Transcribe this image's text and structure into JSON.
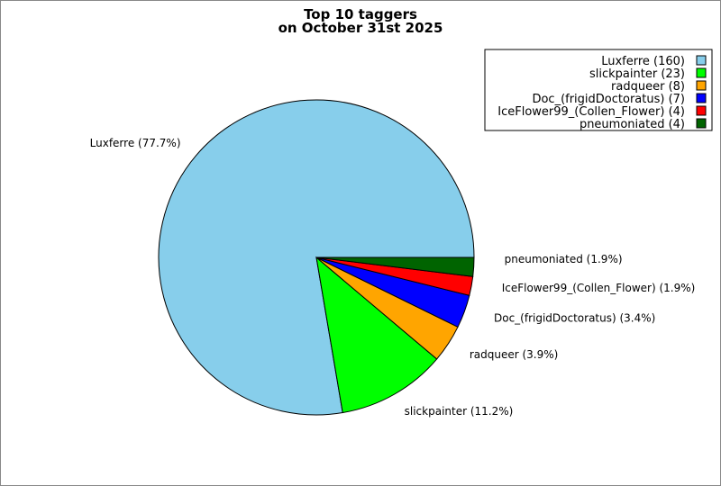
{
  "chart_data": {
    "type": "pie",
    "title_lines": [
      "Top 10 taggers",
      "on October 31st 2025"
    ],
    "slices": [
      {
        "name": "Luxferre",
        "value": 160,
        "percent": "77.7%",
        "color": "#87ceeb",
        "legend": "Luxferre (160)",
        "label": "Luxferre (77.7%)"
      },
      {
        "name": "slickpainter",
        "value": 23,
        "percent": "11.2%",
        "color": "#00ff00",
        "legend": "slickpainter (23)",
        "label": "slickpainter (11.2%)"
      },
      {
        "name": "radqueer",
        "value": 8,
        "percent": "3.9%",
        "color": "#ffa500",
        "legend": "radqueer (8)",
        "label": "radqueer (3.9%)"
      },
      {
        "name": "Doc_(frigidDoctoratus)",
        "value": 7,
        "percent": "3.4%",
        "color": "#0000ff",
        "legend": "Doc_(frigidDoctoratus) (7)",
        "label": "Doc_(frigidDoctoratus) (3.4%)"
      },
      {
        "name": "IceFlower99_(Collen_Flower)",
        "value": 4,
        "percent": "1.9%",
        "color": "#ff0000",
        "legend": "IceFlower99_(Collen_Flower) (4)",
        "label": "IceFlower99_(Collen_Flower) (1.9%)"
      },
      {
        "name": "pneumoniated",
        "value": 4,
        "percent": "1.9%",
        "color": "#006400",
        "legend": "pneumoniated (4)",
        "label": "pneumoniated (1.9%)"
      }
    ],
    "start_angle": "east, counterclockwise",
    "legend_position": "top-right"
  }
}
